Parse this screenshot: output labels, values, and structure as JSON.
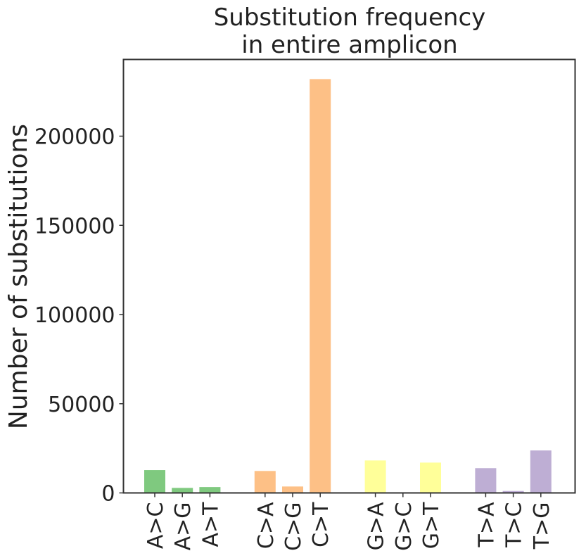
{
  "chart_data": {
    "type": "bar",
    "title_lines": [
      "Substitution frequency",
      "in entire amplicon"
    ],
    "xlabel": "",
    "ylabel": "Number of substitutions",
    "ylim": [
      0,
      243000
    ],
    "yticks": [
      0,
      50000,
      100000,
      150000,
      200000
    ],
    "ytick_labels": [
      "0",
      "50000",
      "100000",
      "150000",
      "200000"
    ],
    "grid": false,
    "legend": "none",
    "groups": [
      {
        "color": "#7fc97f",
        "bars": [
          {
            "label": "A>C",
            "value": 12800
          },
          {
            "label": "A>G",
            "value": 2800
          },
          {
            "label": "A>T",
            "value": 3300
          }
        ]
      },
      {
        "color": "#fdc086",
        "bars": [
          {
            "label": "C>A",
            "value": 12300
          },
          {
            "label": "C>G",
            "value": 3600
          },
          {
            "label": "C>T",
            "value": 232000
          }
        ]
      },
      {
        "color": "#ffff99",
        "bars": [
          {
            "label": "G>A",
            "value": 18200
          },
          {
            "label": "G>C",
            "value": 0
          },
          {
            "label": "G>T",
            "value": 17000
          }
        ]
      },
      {
        "color": "#beaed4",
        "bars": [
          {
            "label": "T>A",
            "value": 13900
          },
          {
            "label": "T>C",
            "value": 1100
          },
          {
            "label": "T>G",
            "value": 23800
          }
        ]
      }
    ]
  }
}
